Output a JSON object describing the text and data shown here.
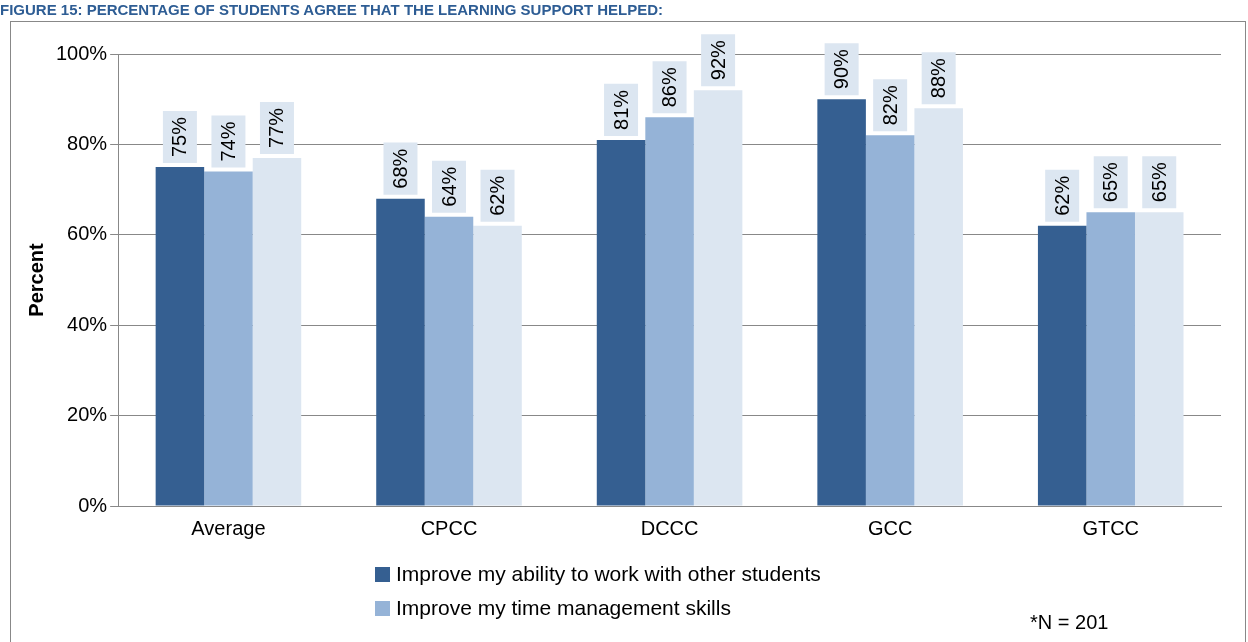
{
  "chart_data": {
    "type": "bar",
    "title": "FIGURE 15: PERCENTAGE OF STUDENTS AGREE THAT THE LEARNING SUPPORT HELPED:",
    "ylabel": "Percent",
    "categories": [
      "Average",
      "CPCC",
      "DCCC",
      "GCC",
      "GTCC"
    ],
    "series": [
      {
        "name": "Improve my ability to work with other students",
        "color": "#355f91",
        "values": [
          75,
          68,
          81,
          90,
          62
        ],
        "value_labels": [
          "75%",
          "68%",
          "81%",
          "90%",
          "62%"
        ]
      },
      {
        "name": "Improve my time management skills",
        "color": "#95b3d7",
        "values": [
          74,
          64,
          86,
          82,
          65
        ],
        "value_labels": [
          "74%",
          "64%",
          "86%",
          "82%",
          "65%"
        ]
      },
      {
        "color": "#dce6f1",
        "values": [
          77,
          62,
          92,
          88,
          65
        ],
        "value_labels": [
          "77%",
          "62%",
          "92%",
          "88%",
          "65%"
        ]
      }
    ],
    "ylim": [
      0,
      100
    ],
    "yticks": [
      {
        "value": 0,
        "label": "0%"
      },
      {
        "value": 20,
        "label": "20%"
      },
      {
        "value": 40,
        "label": "40%"
      },
      {
        "value": 60,
        "label": "60%"
      },
      {
        "value": 80,
        "label": "80%"
      },
      {
        "value": 100,
        "label": "100%"
      }
    ],
    "grid": "y",
    "legend": "bottom",
    "annotations": [
      "*N = 201"
    ]
  }
}
